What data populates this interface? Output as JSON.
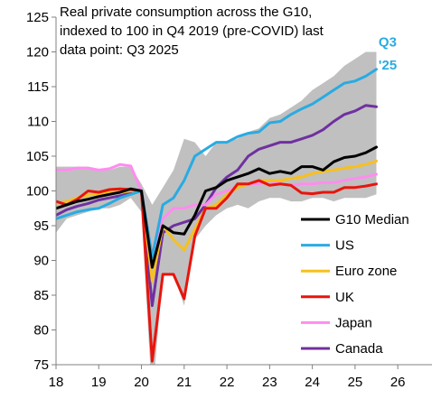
{
  "chart_data": {
    "type": "line",
    "title_lines": [
      "Real private consumption across the G10,",
      "indexed to 100 in Q4 2019 (pre-COVID) last",
      "data point: Q3 2025"
    ],
    "xlabel": "",
    "ylabel": "",
    "xlim": [
      18,
      26.8
    ],
    "ylim": [
      75,
      125
    ],
    "x_ticks": [
      18,
      19,
      20,
      21,
      22,
      23,
      24,
      25,
      26
    ],
    "x_tick_labels": [
      "18",
      "19",
      "20",
      "21",
      "22",
      "23",
      "24",
      "25",
      "26"
    ],
    "y_ticks": [
      75,
      80,
      85,
      90,
      95,
      100,
      105,
      110,
      115,
      120,
      125
    ],
    "y_tick_labels": [
      "75",
      "80",
      "85",
      "90",
      "95",
      "100",
      "105",
      "110",
      "115",
      "120",
      "125"
    ],
    "grid": false,
    "legend_position": "lower-right",
    "x": [
      18.0,
      18.25,
      18.5,
      18.75,
      19.0,
      19.25,
      19.5,
      19.75,
      20.0,
      20.25,
      20.5,
      20.75,
      21.0,
      21.25,
      21.5,
      21.75,
      22.0,
      22.25,
      22.5,
      22.75,
      23.0,
      23.25,
      23.5,
      23.75,
      24.0,
      24.25,
      24.5,
      24.75,
      25.0,
      25.25,
      25.5
    ],
    "band": {
      "color": "#c0c0c0",
      "lower": [
        94.0,
        96.0,
        96.5,
        97.0,
        97.5,
        97.5,
        98.0,
        99.0,
        97.0,
        70.0,
        88.0,
        88.0,
        83.5,
        93.0,
        95.0,
        96.5,
        97.5,
        98.0,
        97.5,
        98.5,
        99.0,
        99.0,
        98.5,
        98.5,
        99.0,
        99.0,
        98.5,
        99.0,
        99.0,
        99.0,
        99.5
      ],
      "upper": [
        103.5,
        103.5,
        103.5,
        103.5,
        103.0,
        103.0,
        103.5,
        103.5,
        101.0,
        98.0,
        100.5,
        103.0,
        107.5,
        107.0,
        105.0,
        107.0,
        107.0,
        107.5,
        108.5,
        109.0,
        110.5,
        111.0,
        112.0,
        113.0,
        114.5,
        115.5,
        116.5,
        118.0,
        119.0,
        120.0,
        120.0
      ]
    },
    "series": [
      {
        "name": "G10 Median",
        "color": "#000000",
        "values": [
          97.5,
          98.0,
          98.5,
          98.8,
          99.2,
          99.5,
          99.8,
          100.3,
          100.0,
          89.0,
          95.0,
          94.0,
          93.8,
          96.5,
          100.0,
          100.5,
          101.5,
          102.0,
          102.5,
          103.2,
          102.5,
          102.8,
          102.5,
          103.5,
          103.5,
          103.0,
          104.2,
          104.8,
          105.0,
          105.5,
          106.3
        ]
      },
      {
        "name": "US",
        "color": "#29abe2",
        "values": [
          96.0,
          96.5,
          97.0,
          97.3,
          97.5,
          98.2,
          99.0,
          99.5,
          100.0,
          90.5,
          98.0,
          99.0,
          101.5,
          105.0,
          106.0,
          107.0,
          107.0,
          107.8,
          108.3,
          108.5,
          109.8,
          110.0,
          111.0,
          111.8,
          112.5,
          113.5,
          114.5,
          115.5,
          115.8,
          116.5,
          117.5
        ]
      },
      {
        "name": "Euro zone",
        "color": "#f7c01e",
        "values": [
          98.2,
          98.5,
          99.0,
          99.4,
          99.6,
          99.8,
          99.8,
          100.0,
          100.0,
          87.0,
          95.0,
          93.0,
          91.5,
          94.5,
          97.5,
          98.0,
          99.5,
          100.5,
          101.0,
          101.5,
          101.5,
          101.5,
          101.8,
          102.0,
          102.5,
          102.8,
          103.0,
          103.3,
          103.5,
          103.8,
          104.3
        ]
      },
      {
        "name": "UK",
        "color": "#e8140c",
        "values": [
          98.5,
          98.0,
          98.8,
          100.0,
          99.8,
          100.2,
          100.3,
          100.2,
          100.0,
          75.5,
          88.0,
          88.0,
          84.5,
          93.5,
          97.5,
          97.5,
          99.0,
          101.0,
          101.0,
          101.5,
          100.8,
          101.0,
          100.8,
          99.7,
          99.6,
          99.8,
          99.8,
          100.5,
          100.5,
          100.7,
          101.0
        ]
      },
      {
        "name": "Japan",
        "color": "#ff8cf0",
        "values": [
          103.0,
          103.0,
          103.3,
          103.3,
          103.0,
          103.2,
          103.8,
          103.6,
          100.0,
          90.5,
          96.0,
          97.5,
          97.5,
          98.0,
          98.0,
          99.5,
          100.0,
          100.5,
          101.0,
          101.0,
          101.5,
          101.0,
          100.8,
          101.0,
          101.0,
          101.2,
          101.2,
          101.5,
          101.8,
          102.0,
          102.4
        ]
      },
      {
        "name": "Canada",
        "color": "#7030a0",
        "values": [
          96.5,
          97.3,
          97.8,
          98.2,
          98.7,
          99.0,
          99.3,
          99.7,
          100.0,
          83.5,
          94.0,
          95.0,
          95.5,
          96.0,
          98.0,
          100.5,
          102.0,
          103.0,
          105.0,
          106.0,
          106.5,
          107.0,
          107.0,
          107.5,
          108.0,
          108.8,
          110.0,
          111.0,
          111.5,
          112.3,
          112.1
        ]
      }
    ],
    "annotations": [
      {
        "text": "Q3",
        "x": 25.55,
        "y": 120.8,
        "color": "#29abe2"
      },
      {
        "text": "'25",
        "x": 25.55,
        "y": 117.5,
        "color": "#29abe2"
      }
    ]
  }
}
